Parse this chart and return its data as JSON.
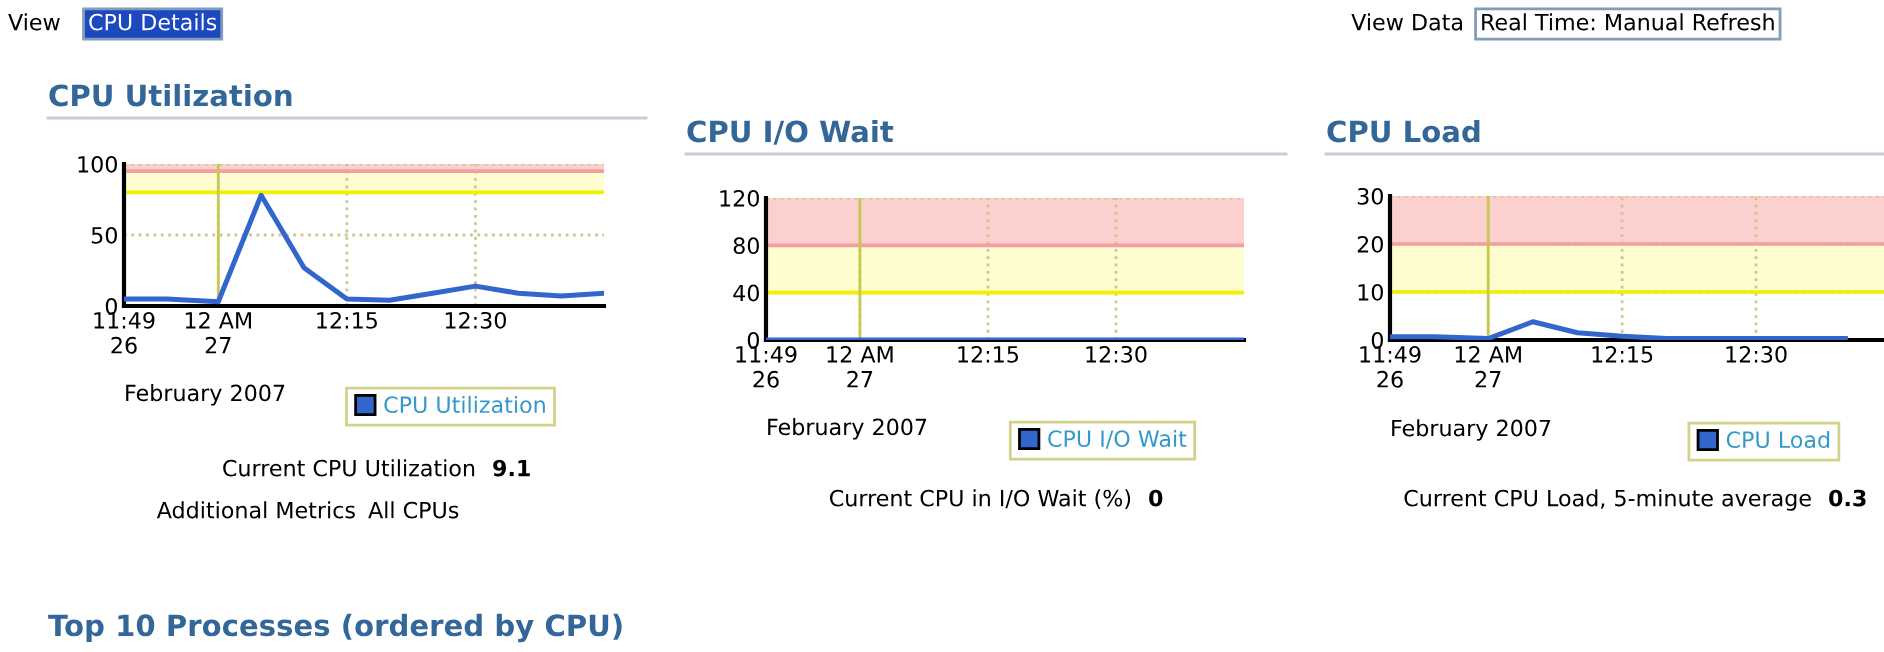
{
  "chart_data": [
    {
      "type": "line",
      "title": "CPU Utilization",
      "xlabel": "February 2007",
      "x": [
        "2007-02-26T23:49",
        "2007-02-26T23:54",
        "2007-02-27T00:00",
        "2007-02-27T00:05",
        "2007-02-27T00:10",
        "2007-02-27T00:15",
        "2007-02-27T00:20",
        "2007-02-27T00:25",
        "2007-02-27T00:30",
        "2007-02-27T00:35",
        "2007-02-27T00:40",
        "2007-02-27T00:45"
      ],
      "series": [
        {
          "name": "CPU Utilization",
          "color": "#3366cc",
          "values": [
            5,
            5,
            3,
            78,
            27,
            5,
            4,
            9,
            14,
            9,
            7,
            9
          ]
        }
      ],
      "xlim": [
        "2007-02-26T23:49",
        "2007-02-27T00:45"
      ],
      "xticks": [
        {
          "value": "2007-02-26T23:49",
          "label": "11:49\n26"
        },
        {
          "value": "2007-02-27T00:00",
          "label": "12 AM\n27"
        },
        {
          "value": "2007-02-27T00:15",
          "label": "12:15"
        },
        {
          "value": "2007-02-27T00:30",
          "label": "12:30"
        }
      ],
      "ylim": [
        0,
        100
      ],
      "yticks": [
        0,
        50,
        100
      ],
      "bands": [
        {
          "axis": "y",
          "from": 80,
          "to": 95,
          "color": "#fdfdd0"
        },
        {
          "axis": "y",
          "from": 95,
          "to": 100,
          "color": "#fdd0d0"
        }
      ],
      "ref_lines": [
        {
          "axis": "y",
          "value": 80,
          "color": "#f0f000"
        },
        {
          "axis": "y",
          "value": 95,
          "color": "#f0a0a0"
        },
        {
          "axis": "x",
          "value": "2007-02-27T00:00",
          "color": "#c8c850"
        }
      ],
      "grid": true,
      "legend": "bottom right",
      "line_style": "solid",
      "marker": "none",
      "annotations": [
        "View",
        "CPU Details",
        "Current CPU Utilization",
        "9.1",
        "Additional Metrics",
        "All CPUs",
        "Top 10 Processes (ordered by CPU)"
      ]
    },
    {
      "type": "line",
      "title": "CPU I/O Wait",
      "xlabel": "February 2007",
      "x": [
        "2007-02-26T23:49",
        "2007-02-26T23:54",
        "2007-02-27T00:00",
        "2007-02-27T00:05",
        "2007-02-27T00:10",
        "2007-02-27T00:15",
        "2007-02-27T00:20",
        "2007-02-27T00:25",
        "2007-02-27T00:30",
        "2007-02-27T00:35",
        "2007-02-27T00:40",
        "2007-02-27T00:45"
      ],
      "series": [
        {
          "name": "CPU I/O Wait",
          "color": "#3366cc",
          "values": [
            0,
            0,
            0,
            0,
            0,
            0,
            0,
            0,
            0,
            0,
            0,
            0
          ]
        }
      ],
      "xlim": [
        "2007-02-26T23:49",
        "2007-02-27T00:45"
      ],
      "xticks": [
        {
          "value": "2007-02-26T23:49",
          "label": "11:49\n26"
        },
        {
          "value": "2007-02-27T00:00",
          "label": "12 AM\n27"
        },
        {
          "value": "2007-02-27T00:15",
          "label": "12:15"
        },
        {
          "value": "2007-02-27T00:30",
          "label": "12:30"
        }
      ],
      "ylim": [
        0,
        120
      ],
      "yticks": [
        0,
        40,
        80,
        120
      ],
      "bands": [
        {
          "axis": "y",
          "from": 40,
          "to": 80,
          "color": "#fdfdd0"
        },
        {
          "axis": "y",
          "from": 80,
          "to": 120,
          "color": "#fdd0d0"
        }
      ],
      "ref_lines": [
        {
          "axis": "y",
          "value": 40,
          "color": "#f0f000"
        },
        {
          "axis": "y",
          "value": 80,
          "color": "#f0a0a0"
        },
        {
          "axis": "x",
          "value": "2007-02-27T00:00",
          "color": "#c8c850"
        }
      ],
      "grid": true,
      "legend": "bottom right",
      "line_style": "solid",
      "marker": "none",
      "annotations": [
        "Current CPU in I/O Wait (%)",
        "0"
      ]
    },
    {
      "type": "line",
      "title": "CPU Load",
      "xlabel": "February 2007",
      "x": [
        "2007-02-26T23:49",
        "2007-02-26T23:54",
        "2007-02-27T00:00",
        "2007-02-27T00:05",
        "2007-02-27T00:10",
        "2007-02-27T00:15",
        "2007-02-27T00:20",
        "2007-02-27T00:25",
        "2007-02-27T00:30",
        "2007-02-27T00:35",
        "2007-02-27T00:40"
      ],
      "series": [
        {
          "name": "CPU Load",
          "color": "#3366cc",
          "values": [
            0.7,
            0.7,
            0.3,
            3.8,
            1.5,
            0.8,
            0.3,
            0.3,
            0.3,
            0.3,
            0.3
          ]
        }
      ],
      "xlim": [
        "2007-02-26T23:49",
        "2007-02-27T00:45"
      ],
      "xticks": [
        {
          "value": "2007-02-26T23:49",
          "label": "11:49\n26"
        },
        {
          "value": "2007-02-27T00:00",
          "label": "12 AM\n27"
        },
        {
          "value": "2007-02-27T00:15",
          "label": "12:15"
        },
        {
          "value": "2007-02-27T00:30",
          "label": "12:30"
        }
      ],
      "ylim": [
        0,
        30
      ],
      "yticks": [
        0,
        10,
        20,
        30
      ],
      "bands": [
        {
          "axis": "y",
          "from": 10,
          "to": 20,
          "color": "#fdfdd0"
        },
        {
          "axis": "y",
          "from": 20,
          "to": 30,
          "color": "#fdd0d0"
        }
      ],
      "ref_lines": [
        {
          "axis": "y",
          "value": 10,
          "color": "#f0f000"
        },
        {
          "axis": "y",
          "value": 20,
          "color": "#f0a0a0"
        },
        {
          "axis": "x",
          "value": "2007-02-27T00:00",
          "color": "#c8c850"
        }
      ],
      "grid": true,
      "legend": "bottom right",
      "line_style": "solid",
      "marker": "none",
      "annotations": [
        "View Data",
        "Real Time: Manual Refresh",
        "Current CPU Load, 5-minute average",
        "0.3"
      ]
    }
  ]
}
